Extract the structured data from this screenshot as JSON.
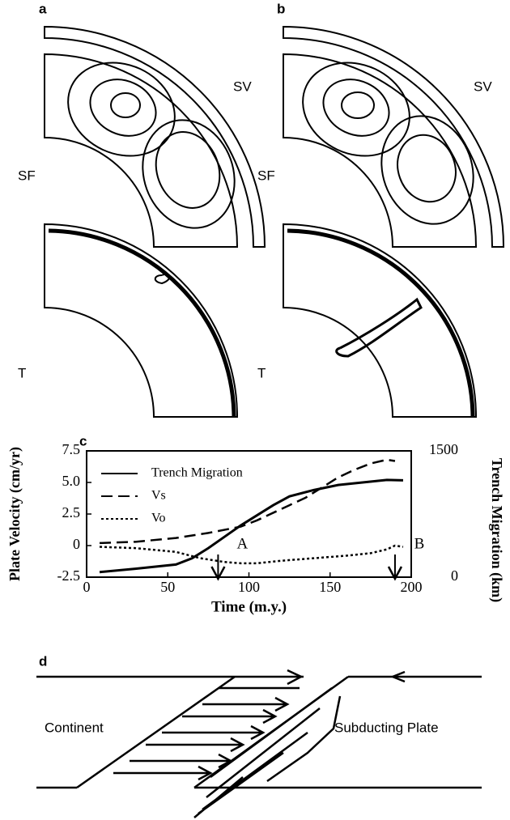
{
  "panels": {
    "a": "a",
    "b": "b",
    "d": "d"
  },
  "labels": {
    "sv_a": "SV",
    "sf_a": "SF",
    "t_a": "T",
    "sv_b": "SV",
    "sf_b": "SF",
    "t_b": "T",
    "continent": "Continent",
    "subducting": "Subducting Plate"
  },
  "chart_data": {
    "type": "line",
    "panel_label": "c",
    "xlabel": "Time (m.y.)",
    "ylabel": "Plate Velocity (cm/yr)",
    "y2label": "Trench Migration (km)",
    "xlim": [
      0,
      200
    ],
    "xticks": [
      0,
      50,
      100,
      150,
      200
    ],
    "ylim": [
      -2.5,
      7.5
    ],
    "yticks": [
      -2.5,
      0,
      2.5,
      {
        "value": 5,
        "label": "5.0"
      },
      7.5
    ],
    "y2lim": [
      0,
      1500
    ],
    "y2ticks": [
      0,
      1500
    ],
    "legend": "upper left",
    "series": [
      {
        "name": "Trench Migration",
        "color": "#000",
        "style": "solid",
        "axis": "y2",
        "x": [
          8,
          30,
          55,
          65,
          75,
          85,
          95,
          105,
          115,
          125,
          140,
          155,
          170,
          185,
          195
        ],
        "values": [
          60,
          100,
          150,
          225,
          345,
          480,
          615,
          735,
          855,
          960,
          1035,
          1095,
          1125,
          1155,
          1150
        ]
      },
      {
        "name": "Vs",
        "color": "#000",
        "style": "dashed",
        "x": [
          8,
          30,
          55,
          75,
          95,
          105,
          115,
          125,
          135,
          145,
          155,
          165,
          175,
          185,
          190
        ],
        "values": [
          0.2,
          0.3,
          0.6,
          1.0,
          1.5,
          2.0,
          2.6,
          3.2,
          3.8,
          4.6,
          5.4,
          6.0,
          6.5,
          6.8,
          6.7
        ]
      },
      {
        "name": "Vo",
        "color": "#000",
        "style": "dotted",
        "x": [
          8,
          30,
          55,
          70,
          85,
          95,
          105,
          120,
          140,
          160,
          175,
          185,
          190,
          195
        ],
        "values": [
          -0.1,
          -0.2,
          -0.5,
          -1.0,
          -1.3,
          -1.4,
          -1.4,
          -1.2,
          -1.0,
          -0.8,
          -0.6,
          -0.3,
          0,
          -0.1
        ]
      }
    ],
    "annotations": [
      {
        "text": "A",
        "x": 81
      },
      {
        "text": "B",
        "x": 190
      }
    ]
  }
}
